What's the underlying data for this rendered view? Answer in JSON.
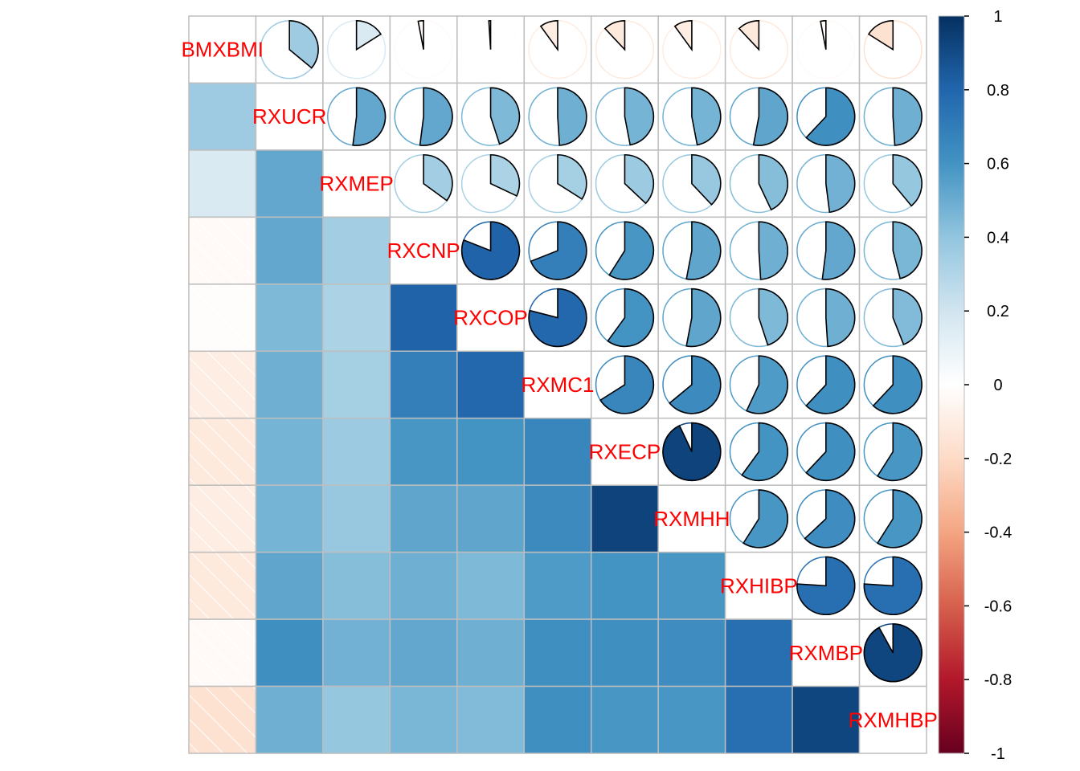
{
  "chart_data": {
    "type": "heatmap",
    "title": "",
    "variables": [
      "BMXBMI",
      "RXUCR",
      "RXMEP",
      "RXCNP",
      "RXCOP",
      "RXMC1",
      "RXECP",
      "RXMHH",
      "RXHIBP",
      "RXMBP",
      "RXMHBP"
    ],
    "matrix": [
      [
        1.0,
        0.36,
        0.16,
        -0.03,
        -0.01,
        -0.1,
        -0.12,
        -0.1,
        -0.12,
        -0.03,
        -0.16
      ],
      [
        0.36,
        1.0,
        0.52,
        0.52,
        0.45,
        0.49,
        0.47,
        0.47,
        0.53,
        0.62,
        0.49
      ],
      [
        0.16,
        0.52,
        1.0,
        0.35,
        0.32,
        0.34,
        0.37,
        0.38,
        0.43,
        0.48,
        0.39
      ],
      [
        -0.03,
        0.52,
        0.35,
        1.0,
        0.81,
        0.69,
        0.59,
        0.53,
        0.49,
        0.52,
        0.46
      ],
      [
        -0.01,
        0.45,
        0.32,
        0.81,
        1.0,
        0.79,
        0.6,
        0.53,
        0.45,
        0.49,
        0.44
      ],
      [
        -0.1,
        0.49,
        0.34,
        0.69,
        0.79,
        1.0,
        0.66,
        0.64,
        0.57,
        0.62,
        0.62
      ],
      [
        -0.12,
        0.47,
        0.37,
        0.59,
        0.6,
        0.66,
        1.0,
        0.93,
        0.6,
        0.62,
        0.59
      ],
      [
        -0.1,
        0.47,
        0.38,
        0.53,
        0.53,
        0.64,
        0.93,
        1.0,
        0.59,
        0.63,
        0.59
      ],
      [
        -0.12,
        0.53,
        0.43,
        0.49,
        0.45,
        0.57,
        0.6,
        0.59,
        1.0,
        0.76,
        0.76
      ],
      [
        -0.03,
        0.62,
        0.48,
        0.52,
        0.49,
        0.62,
        0.62,
        0.63,
        0.76,
        1.0,
        0.92
      ],
      [
        -0.16,
        0.49,
        0.39,
        0.46,
        0.44,
        0.62,
        0.59,
        0.59,
        0.76,
        0.92,
        1.0
      ]
    ],
    "upper_method": "pie",
    "lower_method": "shade",
    "colorbar": {
      "ticks": [
        "1",
        "0.8",
        "0.6",
        "0.4",
        "0.2",
        "0",
        "-0.2",
        "-0.4",
        "-0.6",
        "-0.8",
        "-1"
      ],
      "range": [
        -1,
        1
      ]
    },
    "colors": {
      "label": "#ff0000",
      "grid": "#bebebe",
      "negative_hatch": "#ffffff"
    }
  }
}
